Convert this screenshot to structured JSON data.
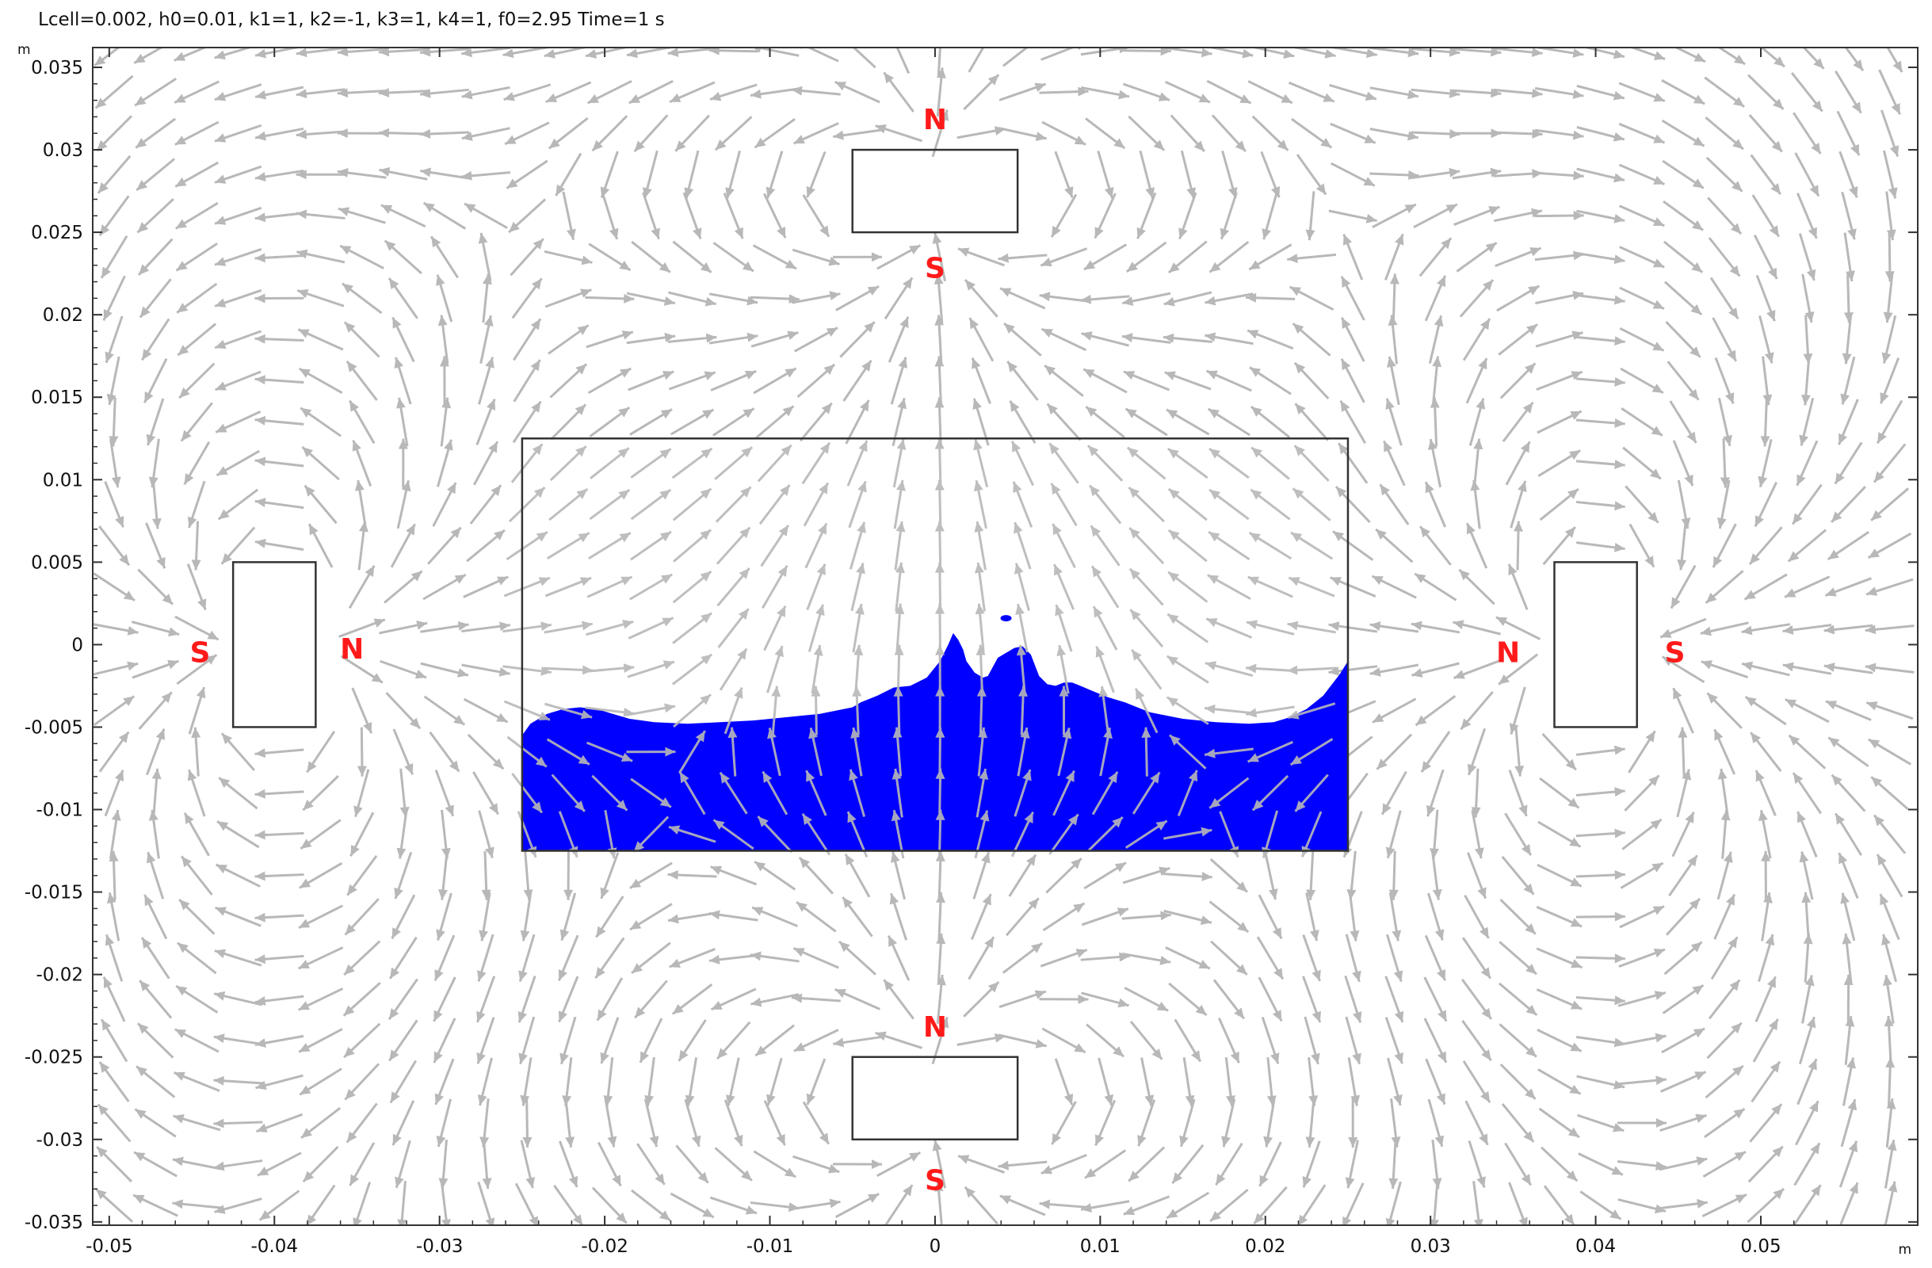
{
  "title": "Lcell=0.002, h0=0.01, k1=1, k2=-1, k3=1, k4=1, f0=2.95 Time=1 s",
  "colors": {
    "background": "#ffffff",
    "fluid": "#0000ff",
    "arrow": "#b8b8b8",
    "outline": "#333333",
    "pole_label": "#ff1a1a",
    "axis": "#333333"
  },
  "chart_data": {
    "type": "quiver",
    "title": "Lcell=0.002, h0=0.01, k1=1, k2=-1, k3=1, k4=1, f0=2.95 Time=1 s",
    "xlabel": "m",
    "ylabel": "m",
    "xlim": [
      -0.051,
      0.0595
    ],
    "ylim": [
      -0.0352,
      0.0362
    ],
    "x_ticks": [
      -0.05,
      -0.04,
      -0.03,
      -0.02,
      -0.01,
      0,
      0.01,
      0.02,
      0.03,
      0.04,
      0.05
    ],
    "x_tick_labels": [
      "-0.05",
      "-0.04",
      "-0.03",
      "-0.02",
      "-0.01",
      "0",
      "0.01",
      "0.02",
      "0.03",
      "0.04",
      "0.05"
    ],
    "y_ticks": [
      0.035,
      0.03,
      0.025,
      0.02,
      0.015,
      0.01,
      0.005,
      0,
      -0.005,
      -0.01,
      -0.015,
      -0.02,
      -0.025,
      -0.03,
      -0.035
    ],
    "y_tick_labels": [
      "0.035",
      "0.03",
      "0.025",
      "0.02",
      "0.015",
      "0.01",
      "0.005",
      "0",
      "-0.005",
      "-0.01",
      "-0.015",
      "-0.02",
      "-0.025",
      "-0.03",
      "-0.035"
    ],
    "grid": false,
    "magnets": [
      {
        "name": "top",
        "x0": -0.005,
        "x1": 0.005,
        "y0": 0.025,
        "y1": 0.03,
        "poles": [
          {
            "label": "N",
            "x": 0,
            "y": 0.0318
          },
          {
            "label": "S",
            "x": 0,
            "y": 0.0228
          }
        ]
      },
      {
        "name": "bottom",
        "x0": -0.005,
        "x1": 0.005,
        "y0": -0.03,
        "y1": -0.025,
        "poles": [
          {
            "label": "N",
            "x": 0,
            "y": -0.0232
          },
          {
            "label": "S",
            "x": 0,
            "y": -0.0325
          }
        ]
      },
      {
        "name": "left",
        "x0": -0.0425,
        "x1": -0.0375,
        "y0": -0.005,
        "y1": 0.005,
        "poles": [
          {
            "label": "S",
            "x": -0.0445,
            "y": -0.0005
          },
          {
            "label": "N",
            "x": -0.0353,
            "y": -0.0003
          }
        ]
      },
      {
        "name": "right",
        "x0": 0.0375,
        "x1": 0.0425,
        "y0": -0.005,
        "y1": 0.005,
        "poles": [
          {
            "label": "N",
            "x": 0.0347,
            "y": -0.0005
          },
          {
            "label": "S",
            "x": 0.0448,
            "y": -0.0005
          }
        ]
      }
    ],
    "container": {
      "x0": -0.025,
      "x1": 0.025,
      "y0": -0.0125,
      "y1": 0.0125
    },
    "fluid_surface": [
      [
        -0.025,
        -0.0055
      ],
      [
        -0.0245,
        -0.0048
      ],
      [
        -0.0235,
        -0.0042
      ],
      [
        -0.0225,
        -0.0039
      ],
      [
        -0.0215,
        -0.0038
      ],
      [
        -0.0205,
        -0.0039
      ],
      [
        -0.0195,
        -0.0042
      ],
      [
        -0.0185,
        -0.0045
      ],
      [
        -0.017,
        -0.0047
      ],
      [
        -0.015,
        -0.0048
      ],
      [
        -0.013,
        -0.0047
      ],
      [
        -0.011,
        -0.0046
      ],
      [
        -0.009,
        -0.0044
      ],
      [
        -0.007,
        -0.0042
      ],
      [
        -0.005,
        -0.0038
      ],
      [
        -0.0045,
        -0.0035
      ],
      [
        -0.0035,
        -0.0031
      ],
      [
        -0.0025,
        -0.0026
      ],
      [
        -0.0015,
        -0.0025
      ],
      [
        -0.0005,
        -0.002
      ],
      [
        0.0003,
        -0.001
      ],
      [
        0.0008,
        0.0
      ],
      [
        0.0011,
        0.0007
      ],
      [
        0.0014,
        0.0003
      ],
      [
        0.0017,
        -0.0003
      ],
      [
        0.0019,
        -0.001
      ],
      [
        0.0024,
        -0.0017
      ],
      [
        0.0029,
        -0.002
      ],
      [
        0.0032,
        -0.0019
      ],
      [
        0.0038,
        -0.0008
      ],
      [
        0.0043,
        -0.0005
      ],
      [
        0.0048,
        -0.0002
      ],
      [
        0.0053,
        -0.0001
      ],
      [
        0.0058,
        -0.0006
      ],
      [
        0.0063,
        -0.0019
      ],
      [
        0.0068,
        -0.0024
      ],
      [
        0.0073,
        -0.0025
      ],
      [
        0.0078,
        -0.0023
      ],
      [
        0.0083,
        -0.0023
      ],
      [
        0.0088,
        -0.0025
      ],
      [
        0.0095,
        -0.0028
      ],
      [
        0.0105,
        -0.0032
      ],
      [
        0.0115,
        -0.0035
      ],
      [
        0.013,
        -0.0041
      ],
      [
        0.015,
        -0.0045
      ],
      [
        0.017,
        -0.0047
      ],
      [
        0.019,
        -0.0048
      ],
      [
        0.0205,
        -0.0047
      ],
      [
        0.0215,
        -0.0044
      ],
      [
        0.0225,
        -0.0039
      ],
      [
        0.0235,
        -0.0031
      ],
      [
        0.0245,
        -0.0018
      ],
      [
        0.025,
        -0.001
      ]
    ],
    "droplet": {
      "x": 0.0043,
      "y": 0.0016
    },
    "field_arrows": "grey arrows showing magnetic flux density direction over the whole domain"
  }
}
